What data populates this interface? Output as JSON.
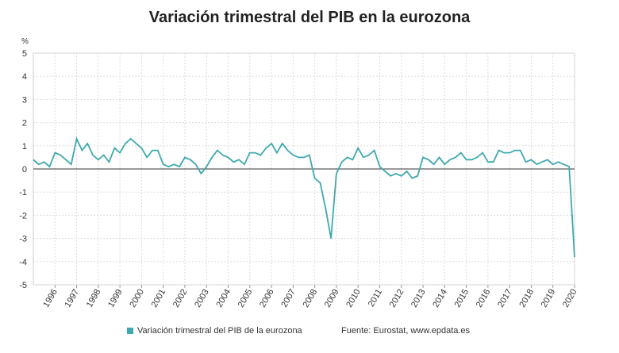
{
  "chart_data": {
    "type": "line",
    "title": "Variación trimestral del PIB en la eurozona",
    "y_axis_label": "%",
    "source": "Fuente: Eurostat, www.epdata.es",
    "categories": [
      null,
      null,
      null,
      null,
      "1996",
      null,
      null,
      null,
      "1997",
      null,
      null,
      null,
      "1998",
      null,
      null,
      null,
      "1999",
      null,
      null,
      null,
      "2000",
      null,
      null,
      null,
      "2001",
      null,
      null,
      null,
      "2002",
      null,
      null,
      null,
      "2003",
      null,
      null,
      null,
      "2004",
      null,
      null,
      null,
      "2005",
      null,
      null,
      null,
      "2006",
      null,
      null,
      null,
      "2007",
      null,
      null,
      null,
      "2008",
      null,
      null,
      null,
      "2009",
      null,
      null,
      null,
      "2010",
      null,
      null,
      null,
      "2011",
      null,
      null,
      null,
      "2012",
      null,
      null,
      null,
      "2013",
      null,
      null,
      null,
      "2014",
      null,
      null,
      null,
      "2015",
      null,
      null,
      null,
      "2016",
      null,
      null,
      null,
      "2017",
      null,
      null,
      null,
      "2018",
      null,
      null,
      null,
      "2019",
      null,
      null,
      null,
      "2020"
    ],
    "series": [
      {
        "name": "Variación trimestral del PIB de la eurozona",
        "color": "#3fa9ad",
        "values": [
          0.4,
          0.2,
          0.3,
          0.1,
          0.7,
          0.6,
          0.4,
          0.2,
          1.3,
          0.8,
          1.1,
          0.6,
          0.4,
          0.6,
          0.3,
          0.9,
          0.7,
          1.1,
          1.3,
          1.1,
          0.9,
          0.5,
          0.8,
          0.8,
          0.2,
          0.1,
          0.2,
          0.1,
          0.5,
          0.4,
          0.2,
          -0.2,
          0.1,
          0.5,
          0.8,
          0.6,
          0.5,
          0.3,
          0.4,
          0.2,
          0.7,
          0.7,
          0.6,
          0.9,
          1.1,
          0.7,
          1.1,
          0.8,
          0.6,
          0.5,
          0.5,
          0.6,
          -0.4,
          -0.6,
          -1.7,
          -3.0,
          -0.2,
          0.3,
          0.5,
          0.4,
          0.9,
          0.5,
          0.6,
          0.8,
          0.1,
          -0.1,
          -0.3,
          -0.2,
          -0.3,
          -0.1,
          -0.4,
          -0.3,
          0.5,
          0.4,
          0.2,
          0.5,
          0.2,
          0.4,
          0.5,
          0.7,
          0.4,
          0.4,
          0.5,
          0.7,
          0.3,
          0.3,
          0.8,
          0.7,
          0.7,
          0.8,
          0.8,
          0.3,
          0.4,
          0.2,
          0.3,
          0.4,
          0.2,
          0.3,
          0.2,
          0.1,
          -3.8
        ]
      }
    ],
    "ylim": [
      -5,
      5
    ],
    "yticks": [
      -5,
      -4,
      -3,
      -2,
      -1,
      0,
      1,
      2,
      3,
      4,
      5
    ],
    "grid": true,
    "legend": "bottom"
  }
}
